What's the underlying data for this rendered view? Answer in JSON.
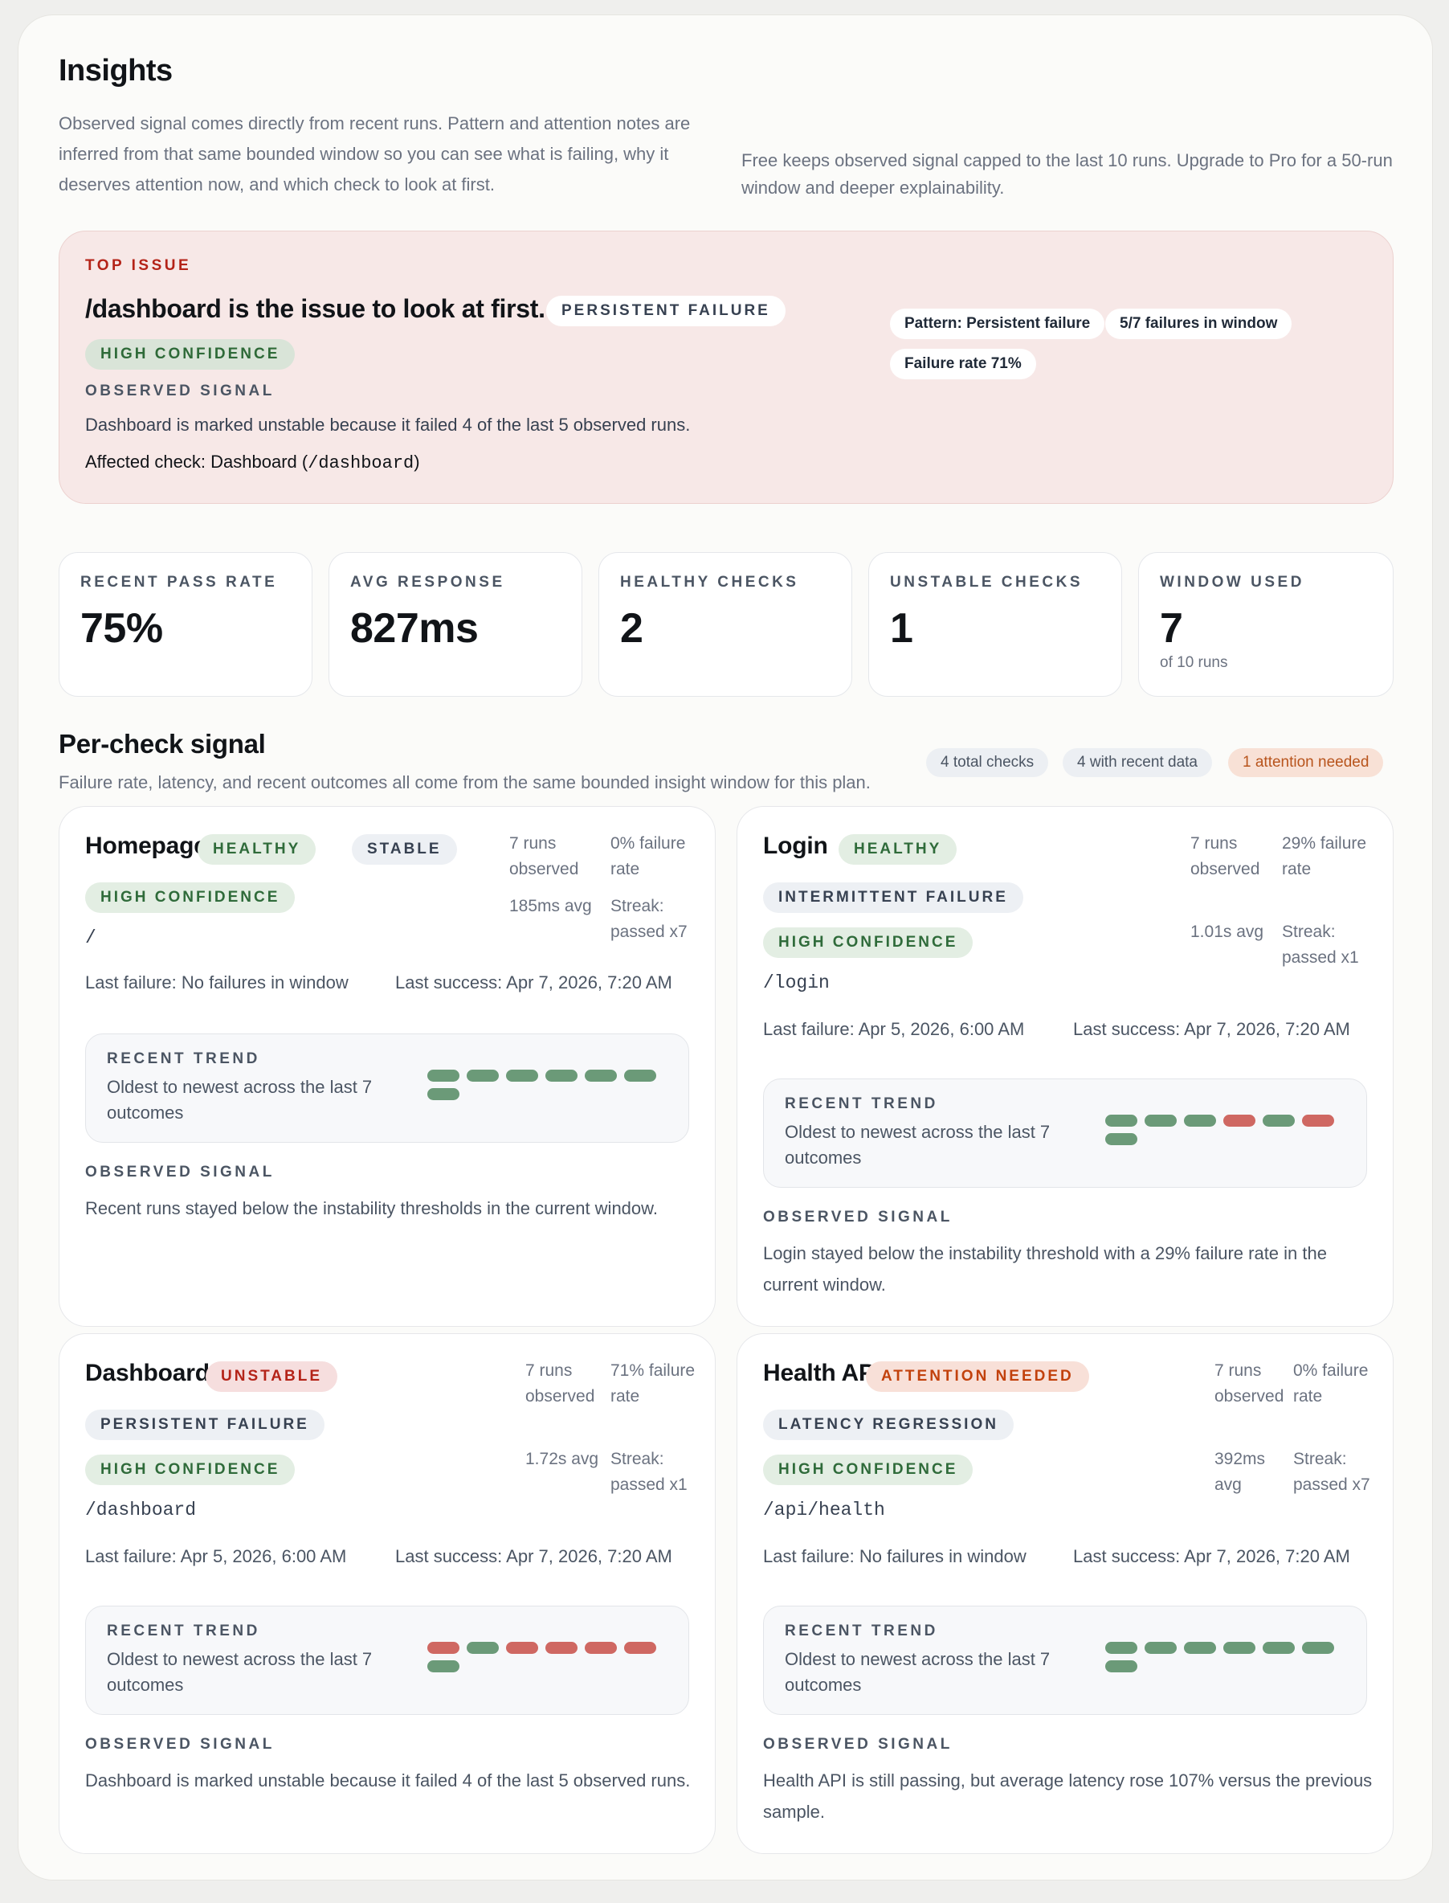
{
  "insights": {
    "title": "Insights",
    "description": "Observed signal comes directly from recent runs. Pattern and attention notes are inferred from that same bounded window so you can see what is failing, why it deserves attention now, and which check to look at first.",
    "plan_note": "Free keeps observed signal capped to the last 10 runs. Upgrade to Pro for a 50-run window and deeper explainability."
  },
  "top_issue": {
    "eyebrow": "TOP ISSUE",
    "title": "/dashboard is the issue to look at first.",
    "pattern_pill": "PERSISTENT FAILURE",
    "confidence_pill": "HIGH CONFIDENCE",
    "observed_label": "OBSERVED SIGNAL",
    "observed_text": "Dashboard is marked unstable because it failed 4 of the last 5 observed runs.",
    "affected_prefix": "Affected check: Dashboard (",
    "affected_path": "/dashboard",
    "affected_suffix": ")",
    "chips": [
      "Pattern: Persistent failure",
      "5/7 failures in window",
      "Failure rate 71%"
    ]
  },
  "stats": [
    {
      "label": "RECENT PASS RATE",
      "value": "75%",
      "sub": ""
    },
    {
      "label": "AVG RESPONSE",
      "value": "827ms",
      "sub": ""
    },
    {
      "label": "HEALTHY CHECKS",
      "value": "2",
      "sub": ""
    },
    {
      "label": "UNSTABLE CHECKS",
      "value": "1",
      "sub": ""
    },
    {
      "label": "WINDOW USED",
      "value": "7",
      "sub": "of 10 runs"
    }
  ],
  "per_check": {
    "title": "Per-check signal",
    "subtitle": "Failure rate, latency, and recent outcomes all come from the same bounded insight window for this plan.",
    "tags": [
      "4 total checks",
      "4 with recent data",
      "1 attention needed"
    ]
  },
  "cards": [
    {
      "name": "Homepage",
      "status": "HEALTHY",
      "pattern": "STABLE",
      "confidence": "HIGH CONFIDENCE",
      "path": "/",
      "runs": "7 runs observed",
      "failure_rate": "0% failure rate",
      "avg": "185ms avg",
      "streak": "Streak: passed x7",
      "last_failure": "Last failure: No failures in window",
      "last_success": "Last success: Apr 7, 2026, 7:20 AM",
      "trend_label": "RECENT TREND",
      "trend_desc": "Oldest to newest across the last 7 outcomes",
      "trend": [
        "pass",
        "pass",
        "pass",
        "pass",
        "pass",
        "pass",
        "pass"
      ],
      "observed_label": "OBSERVED SIGNAL",
      "observed_text": "Recent runs stayed below the instability thresholds in the current window."
    },
    {
      "name": "Login",
      "status": "HEALTHY",
      "pattern": "INTERMITTENT FAILURE",
      "confidence": "HIGH CONFIDENCE",
      "path": "/login",
      "runs": "7 runs observed",
      "failure_rate": "29% failure rate",
      "avg": "1.01s avg",
      "streak": "Streak: passed x1",
      "last_failure": "Last failure: Apr 5, 2026, 6:00 AM",
      "last_success": "Last success: Apr 7, 2026, 7:20 AM",
      "trend_label": "RECENT TREND",
      "trend_desc": "Oldest to newest across the last 7 outcomes",
      "trend": [
        "pass",
        "pass",
        "pass",
        "fail",
        "pass",
        "fail",
        "pass"
      ],
      "observed_label": "OBSERVED SIGNAL",
      "observed_text": "Login stayed below the instability threshold with a 29% failure rate in the current window."
    },
    {
      "name": "Dashboard",
      "status": "UNSTABLE",
      "pattern": "PERSISTENT FAILURE",
      "confidence": "HIGH CONFIDENCE",
      "path": "/dashboard",
      "runs": "7 runs observed",
      "failure_rate": "71% failure rate",
      "avg": "1.72s avg",
      "streak": "Streak: passed x1",
      "last_failure": "Last failure: Apr 5, 2026, 6:00 AM",
      "last_success": "Last success: Apr 7, 2026, 7:20 AM",
      "trend_label": "RECENT TREND",
      "trend_desc": "Oldest to newest across the last 7 outcomes",
      "trend": [
        "fail",
        "pass",
        "fail",
        "fail",
        "fail",
        "fail",
        "pass"
      ],
      "observed_label": "OBSERVED SIGNAL",
      "observed_text": "Dashboard is marked unstable because it failed 4 of the last 5 observed runs."
    },
    {
      "name": "Health API",
      "status": "ATTENTION NEEDED",
      "pattern": "LATENCY REGRESSION",
      "confidence": "HIGH CONFIDENCE",
      "path": "/api/health",
      "runs": "7 runs observed",
      "failure_rate": "0% failure rate",
      "avg": "392ms avg",
      "streak": "Streak: passed x7",
      "last_failure": "Last failure: No failures in window",
      "last_success": "Last success: Apr 7, 2026, 7:20 AM",
      "trend_label": "RECENT TREND",
      "trend_desc": "Oldest to newest across the last 7 outcomes",
      "trend": [
        "pass",
        "pass",
        "pass",
        "pass",
        "pass",
        "pass",
        "pass"
      ],
      "observed_label": "OBSERVED SIGNAL",
      "observed_text": "Health API is still passing, but average latency rose 107% versus the previous sample."
    }
  ]
}
